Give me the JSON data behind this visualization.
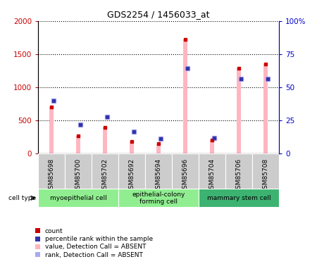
{
  "title": "GDS2254 / 1456033_at",
  "samples": [
    "GSM85698",
    "GSM85700",
    "GSM85702",
    "GSM85692",
    "GSM85694",
    "GSM85696",
    "GSM85704",
    "GSM85706",
    "GSM85708"
  ],
  "pink_bar_vals": [
    700,
    260,
    390,
    180,
    140,
    1720,
    200,
    1285,
    1345
  ],
  "blue_marker_vals": [
    800,
    430,
    545,
    330,
    215,
    1290,
    225,
    1130,
    1130
  ],
  "cell_groups": [
    {
      "label": "myoepithelial cell",
      "start": 0,
      "end": 3,
      "color": "#90EE90"
    },
    {
      "label": "epithelial-colony\nforming cell",
      "start": 3,
      "end": 6,
      "color": "#90EE90"
    },
    {
      "label": "mammary stem cell",
      "start": 6,
      "end": 9,
      "color": "#3CB371"
    }
  ],
  "ylim_left": [
    0,
    2000
  ],
  "ylim_right": [
    0,
    100
  ],
  "yticks_left": [
    0,
    500,
    1000,
    1500,
    2000
  ],
  "yticks_right": [
    0,
    25,
    50,
    75,
    100
  ],
  "yticklabels_left": [
    "0",
    "500",
    "1000",
    "1500",
    "2000"
  ],
  "yticklabels_right": [
    "0",
    "25",
    "50",
    "75",
    "100%"
  ],
  "left_color": "#CC0000",
  "right_color": "#0000CC",
  "pink_color": "#FFB6C1",
  "blue_color": "#AAAAEE",
  "red_dot_color": "#CC0000",
  "blue_dot_color": "#3333AA",
  "legend_items": [
    {
      "label": "count",
      "color": "#CC0000"
    },
    {
      "label": "percentile rank within the sample",
      "color": "#3333AA"
    },
    {
      "label": "value, Detection Call = ABSENT",
      "color": "#FFB6C1"
    },
    {
      "label": "rank, Detection Call = ABSENT",
      "color": "#AAAAEE"
    }
  ]
}
